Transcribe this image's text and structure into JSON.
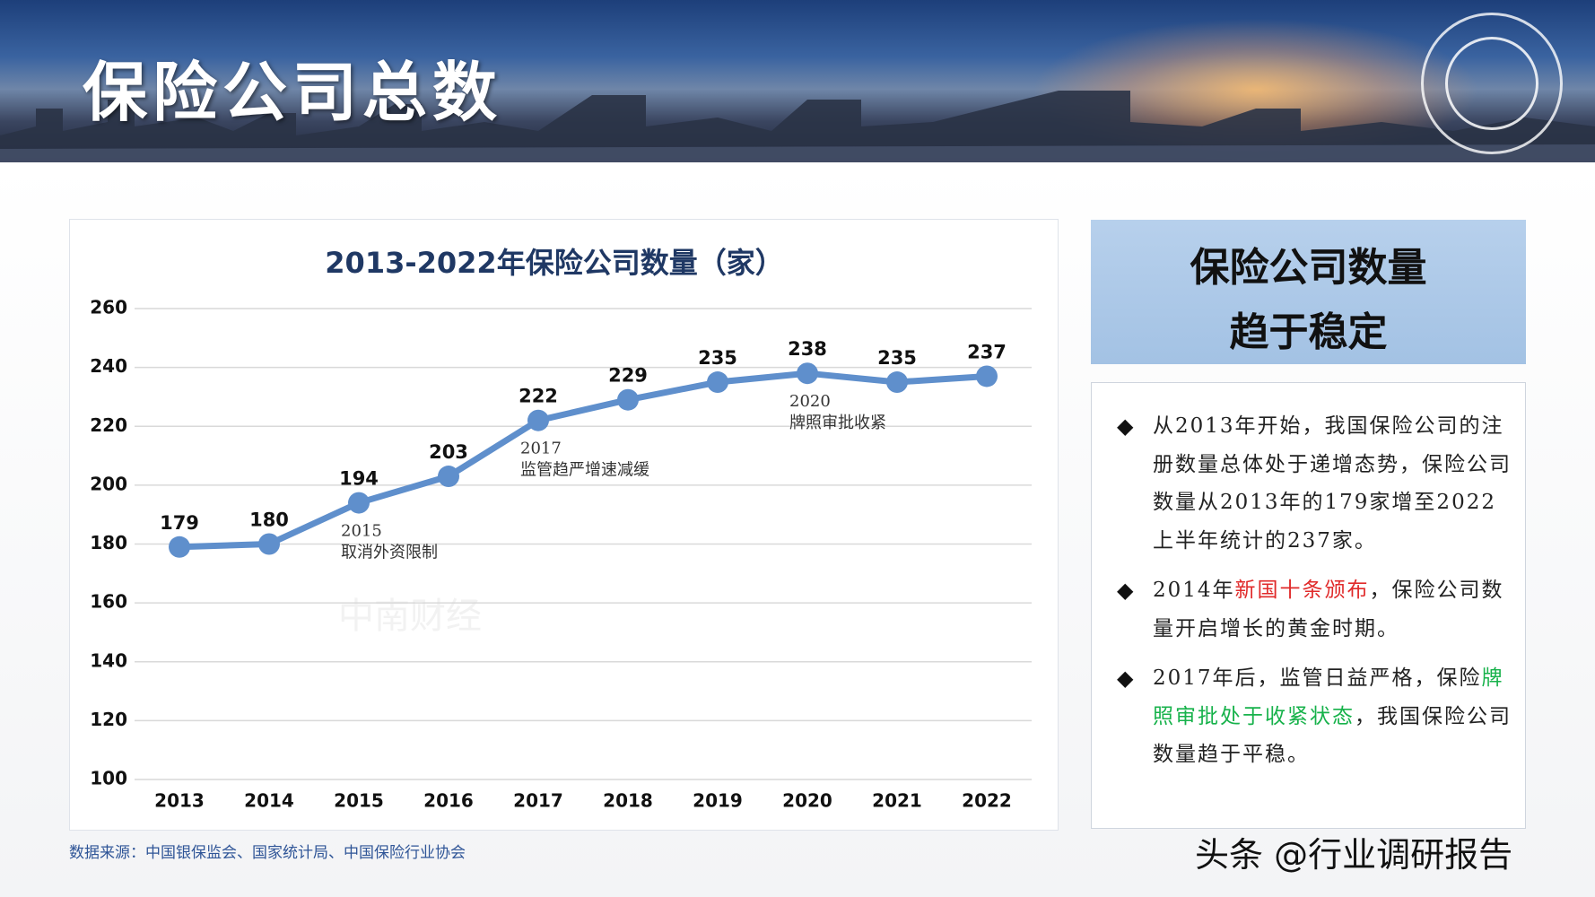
{
  "header": {
    "title": "保险公司总数"
  },
  "chart_data": {
    "type": "line",
    "title": "2013-2022年保险公司数量（家）",
    "categories": [
      "2013",
      "2014",
      "2015",
      "2016",
      "2017",
      "2018",
      "2019",
      "2020",
      "2021",
      "2022"
    ],
    "values": [
      179,
      180,
      194,
      203,
      222,
      229,
      235,
      238,
      235,
      237
    ],
    "color": "#5f8fcc",
    "ylim": [
      100,
      260
    ],
    "yticks": [
      100,
      120,
      140,
      160,
      180,
      200,
      220,
      240,
      260
    ],
    "grid": true,
    "annotations": [
      {
        "lines": [
          "2015",
          "取消外资限制"
        ]
      },
      {
        "lines": [
          "2017",
          "监管趋严增速减缓"
        ]
      },
      {
        "lines": [
          "2020",
          "牌照审批收紧"
        ]
      }
    ],
    "watermark": "中南财经"
  },
  "panel": {
    "title": [
      "保险公司数量",
      "趋于稳定"
    ],
    "bullets": [
      [
        "从2013年开始，我国保险公司的注册数量总体处于递增态势，保险公司数量从2013年的179家增至2022上半年统计的237家。"
      ],
      [
        "2014年",
        "新国十条颁布",
        "，保险公司数量开启增长的黄金时期。"
      ],
      [
        "2017年后，监管日益严格，保险",
        "牌照审批处于收紧状态",
        "，我国保险公司数量趋于平稳。"
      ]
    ]
  },
  "footer": {
    "source": "数据来源：中国银保监会、国家统计局、中国保险行业协会",
    "credit": "头条 @行业调研报告"
  }
}
